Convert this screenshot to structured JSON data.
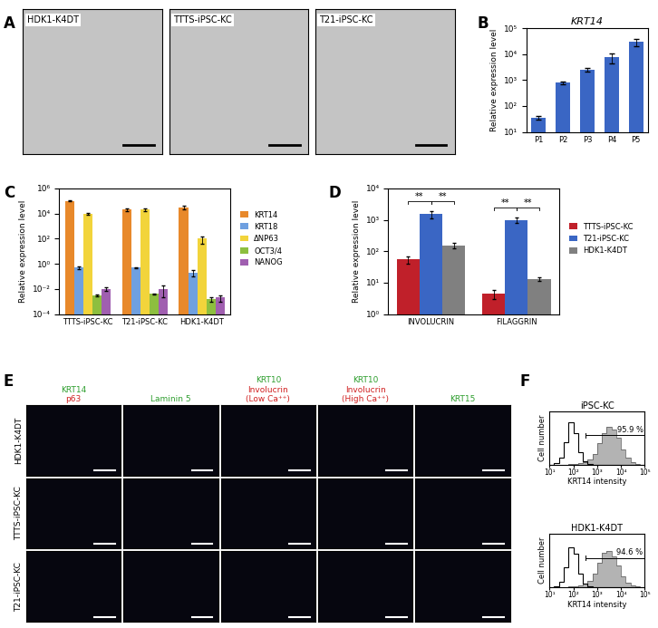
{
  "panel_labels": [
    "A",
    "B",
    "C",
    "D",
    "E",
    "F"
  ],
  "panel_a": {
    "images": [
      "HDK1-K4DT",
      "TTTS-iPSC-KC",
      "T21-iPSC-KC"
    ]
  },
  "chart_data": [
    {
      "type": "bar",
      "title": "KRT14",
      "y_label": "Relative expression level",
      "categories": [
        "P1",
        "P2",
        "P3",
        "P4",
        "P5"
      ],
      "values": [
        35,
        800,
        2500,
        7500,
        30000
      ],
      "errors": [
        5,
        100,
        400,
        3000,
        10000
      ],
      "color": "#3a66c4",
      "log": "y",
      "ylim": [
        10,
        100000
      ],
      "yticks": [
        {
          "value": 10,
          "label": "10¹"
        },
        {
          "value": 100,
          "label": "10²"
        },
        {
          "value": 1000,
          "label": "10³"
        },
        {
          "value": 10000,
          "label": "10⁴"
        },
        {
          "value": 100000,
          "label": "10⁵"
        }
      ]
    },
    {
      "type": "bar",
      "y_label": "Relative expression level",
      "categories": [
        "TTTS-iPSC-KC",
        "T21-iPSC-KC",
        "HDK1-K4DT"
      ],
      "series": [
        {
          "name": "KRT14",
          "color": "#e8892b",
          "values": [
            100000,
            20000,
            30000
          ],
          "errors": [
            10000,
            5000,
            10000
          ]
        },
        {
          "name": "KRT18",
          "color": "#6fa0e0",
          "values": [
            0.5,
            0.5,
            0.2
          ],
          "errors": [
            0.1,
            0.05,
            0.1
          ]
        },
        {
          "name": "ΔNP63",
          "color": "#f2d43b",
          "values": [
            10000,
            20000,
            100
          ],
          "errors": [
            2000,
            5000,
            60
          ]
        },
        {
          "name": "OCT3/4",
          "color": "#8dbf3f",
          "values": [
            0.003,
            0.004,
            0.0015
          ],
          "errors": [
            0.0005,
            0.0005,
            0.0005
          ]
        },
        {
          "name": "NANOG",
          "color": "#a05fb0",
          "values": [
            0.01,
            0.01,
            0.002
          ],
          "errors": [
            0.003,
            0.008,
            0.001
          ]
        }
      ],
      "log": "y",
      "ylim": [
        0.0001,
        1000000
      ],
      "yticks": [
        {
          "value": 0.0001,
          "label": "10⁻⁴"
        },
        {
          "value": 0.01,
          "label": "10⁻²"
        },
        {
          "value": 1,
          "label": "10⁰"
        },
        {
          "value": 100,
          "label": "10²"
        },
        {
          "value": 10000,
          "label": "10⁴"
        },
        {
          "value": 1000000,
          "label": "10⁶"
        }
      ],
      "legend": "right"
    },
    {
      "type": "bar",
      "y_label": "Relative expression level",
      "categories": [
        "INVOLUCRIN",
        "FILAGGRIN"
      ],
      "series": [
        {
          "name": "TTTS-iPSC-KC",
          "color": "#c0202a",
          "values": [
            55,
            4.5
          ],
          "errors": [
            15,
            1.5
          ]
        },
        {
          "name": "T21-iPSC-KC",
          "color": "#3a66c4",
          "values": [
            1500,
            1000
          ],
          "errors": [
            400,
            200
          ]
        },
        {
          "name": "HDK1-K4DT",
          "color": "#808080",
          "values": [
            150,
            13
          ],
          "errors": [
            30,
            2
          ]
        }
      ],
      "log": "y",
      "ylim": [
        1,
        10000
      ],
      "yticks": [
        {
          "value": 1,
          "label": "10⁰"
        },
        {
          "value": 10,
          "label": "10¹"
        },
        {
          "value": 100,
          "label": "10²"
        },
        {
          "value": 1000,
          "label": "10³"
        },
        {
          "value": 10000,
          "label": "10⁴"
        }
      ],
      "legend": "right",
      "significance": [
        {
          "category": "INVOLUCRIN",
          "series": [
            "TTTS-iPSC-KC",
            "T21-iPSC-KC"
          ],
          "label": "**"
        },
        {
          "category": "INVOLUCRIN",
          "series": [
            "T21-iPSC-KC",
            "HDK1-K4DT"
          ],
          "label": "**"
        },
        {
          "category": "FILAGGRIN",
          "series": [
            "TTTS-iPSC-KC",
            "T21-iPSC-KC"
          ],
          "label": "**"
        },
        {
          "category": "FILAGGRIN",
          "series": [
            "T21-iPSC-KC",
            "HDK1-K4DT"
          ],
          "label": "**"
        }
      ]
    },
    {
      "type": "histogram",
      "title": "iPSC-KC",
      "x_label": "KRT14 intensity",
      "y_label": "Cell number",
      "bins": [
        10,
        15.85,
        25.12,
        39.81,
        63.1,
        100,
        158.5,
        251.2,
        398.1,
        631,
        1000,
        1585,
        2512,
        3981,
        6310,
        10000,
        15850,
        25120,
        39810,
        63100,
        100000
      ],
      "series": [
        {
          "type": "area",
          "color": "#b3b3b3",
          "values": [
            0,
            0,
            0,
            0,
            1,
            2,
            3,
            6,
            12,
            25,
            48,
            70,
            85,
            80,
            60,
            35,
            15,
            5,
            1,
            0
          ]
        },
        {
          "type": "line",
          "color": "#000000",
          "values": [
            0,
            3,
            15,
            50,
            95,
            70,
            28,
            8,
            2,
            0,
            0,
            0,
            0,
            0,
            0,
            0,
            0,
            0,
            0,
            0
          ]
        }
      ],
      "log": "x",
      "xlim": [
        10,
        100000
      ],
      "xticks": [
        {
          "value": 10,
          "label": "10¹"
        },
        {
          "value": 100,
          "label": "10²"
        },
        {
          "value": 1000,
          "label": "10³"
        },
        {
          "value": 10000,
          "label": "10⁴"
        },
        {
          "value": 100000,
          "label": "10⁵"
        }
      ],
      "ylim": [
        0,
        120
      ],
      "tick_labels": "x",
      "gate": {
        "range": [
          316,
          100000
        ],
        "label": "95.9 %"
      }
    },
    {
      "type": "histogram",
      "title": "HDK1-K4DT",
      "x_label": "KRT14 intensity",
      "y_label": "Cell number",
      "bins": [
        10,
        15.85,
        25.12,
        39.81,
        63.1,
        100,
        158.5,
        251.2,
        398.1,
        631,
        1000,
        1585,
        2512,
        3981,
        6310,
        10000,
        15850,
        25120,
        39810,
        63100,
        100000
      ],
      "series": [
        {
          "type": "area",
          "color": "#b3b3b3",
          "values": [
            0,
            0,
            0,
            0,
            1,
            2,
            4,
            8,
            15,
            30,
            55,
            78,
            82,
            70,
            48,
            25,
            10,
            3,
            1,
            0
          ]
        },
        {
          "type": "line",
          "color": "#000000",
          "values": [
            0,
            2,
            12,
            45,
            90,
            75,
            30,
            9,
            2,
            0,
            0,
            0,
            0,
            0,
            0,
            0,
            0,
            0,
            0,
            0
          ]
        }
      ],
      "log": "x",
      "xlim": [
        10,
        100000
      ],
      "xticks": [
        {
          "value": 10,
          "label": "10¹"
        },
        {
          "value": 100,
          "label": "10²"
        },
        {
          "value": 1000,
          "label": "10³"
        },
        {
          "value": 10000,
          "label": "10⁴"
        },
        {
          "value": 100000,
          "label": "10⁵"
        }
      ],
      "ylim": [
        0,
        120
      ],
      "tick_labels": "x",
      "gate": {
        "range": [
          316,
          100000
        ],
        "label": "94.6 %"
      }
    }
  ],
  "panel_e": {
    "columns": [
      [
        {
          "text": "KRT14",
          "color": "#2e9e2e"
        },
        {
          "text": "p63",
          "color": "#d02020"
        }
      ],
      [
        {
          "text": "Laminin 5",
          "color": "#2e9e2e"
        }
      ],
      [
        {
          "text": "KRT10",
          "color": "#2e9e2e"
        },
        {
          "text": "Involucrin",
          "color": "#d02020"
        },
        {
          "text": "(Low Ca⁺⁺)",
          "color": "#d02020"
        }
      ],
      [
        {
          "text": "KRT10",
          "color": "#2e9e2e"
        },
        {
          "text": "Involucrin",
          "color": "#d02020"
        },
        {
          "text": "(High Ca⁺⁺)",
          "color": "#d02020"
        }
      ],
      [
        {
          "text": "KRT15",
          "color": "#2e9e2e"
        }
      ]
    ],
    "rows": [
      "HDK1-K4DT",
      "TTTS-iPSC-KC",
      "T21-iPSC-KC"
    ]
  }
}
